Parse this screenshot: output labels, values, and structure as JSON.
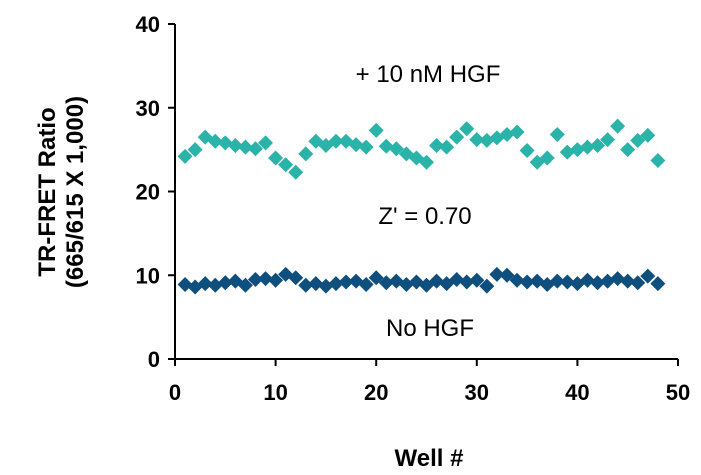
{
  "chart_data": {
    "type": "scatter",
    "xlabel": "Well #",
    "ylabel_lines": [
      "TR-FRET Ratio",
      "(665/615 X 1,000)"
    ],
    "xlim": [
      0,
      50
    ],
    "ylim": [
      0,
      40
    ],
    "xticks": [
      0,
      10,
      20,
      30,
      40,
      50
    ],
    "yticks": [
      0,
      10,
      20,
      30,
      40
    ],
    "grid": false,
    "marker": "diamond",
    "series": [
      {
        "name": "+ 10 nM HGF",
        "color": "#2ab3a9",
        "x": [
          1,
          2,
          3,
          4,
          5,
          6,
          7,
          8,
          9,
          10,
          11,
          12,
          13,
          14,
          15,
          16,
          17,
          18,
          19,
          20,
          21,
          22,
          23,
          24,
          25,
          26,
          27,
          28,
          29,
          30,
          31,
          32,
          33,
          34,
          35,
          36,
          37,
          38,
          39,
          40,
          41,
          42,
          43,
          44,
          45,
          46,
          47,
          48
        ],
        "y": [
          24.2,
          25.0,
          26.5,
          26.0,
          25.8,
          25.5,
          25.3,
          25.1,
          25.8,
          24.0,
          23.2,
          22.3,
          24.5,
          26.0,
          25.5,
          26.0,
          26.0,
          25.6,
          25.3,
          27.3,
          25.4,
          25.1,
          24.5,
          24.0,
          23.5,
          25.5,
          25.3,
          26.5,
          27.5,
          26.2,
          26.1,
          26.4,
          26.8,
          27.1,
          24.9,
          23.5,
          24.0,
          26.8,
          24.7,
          25.0,
          25.3,
          25.5,
          26.2,
          27.8,
          25.0,
          26.1,
          26.7,
          23.7
        ]
      },
      {
        "name": "No HGF",
        "color": "#0e4f7e",
        "x": [
          1,
          2,
          3,
          4,
          5,
          6,
          7,
          8,
          9,
          10,
          11,
          12,
          13,
          14,
          15,
          16,
          17,
          18,
          19,
          20,
          21,
          22,
          23,
          24,
          25,
          26,
          27,
          28,
          29,
          30,
          31,
          32,
          33,
          34,
          35,
          36,
          37,
          38,
          39,
          40,
          41,
          42,
          43,
          44,
          45,
          46,
          47,
          48
        ],
        "y": [
          8.9,
          8.6,
          9.0,
          8.8,
          9.1,
          9.3,
          8.8,
          9.5,
          9.6,
          9.4,
          10.1,
          9.7,
          8.8,
          9.0,
          8.7,
          9.0,
          9.2,
          9.3,
          8.9,
          9.7,
          9.1,
          9.3,
          8.9,
          9.2,
          8.8,
          9.3,
          9.0,
          9.5,
          9.2,
          9.4,
          8.7,
          10.1,
          10.0,
          9.4,
          9.2,
          9.3,
          8.9,
          9.3,
          9.2,
          9.0,
          9.4,
          9.1,
          9.3,
          9.6,
          9.3,
          9.1,
          9.9,
          9.0
        ]
      }
    ],
    "annotations": {
      "hgf_label": "+ 10 nM HGF",
      "zprime_label": "Z' = 0.70",
      "nohgf_label": "No HGF"
    }
  }
}
